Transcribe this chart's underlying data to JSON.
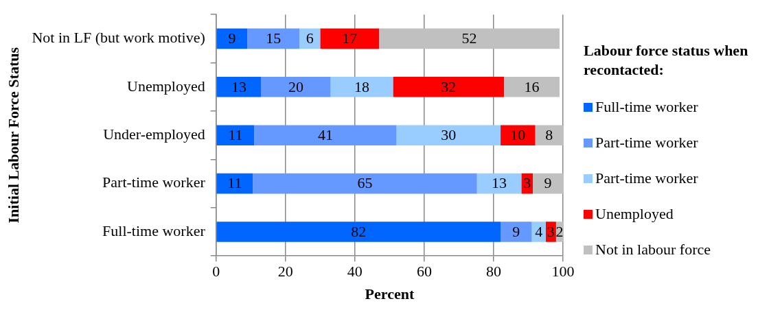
{
  "chart_data": {
    "type": "bar",
    "orientation": "horizontal",
    "stacked": true,
    "xlabel": "Percent",
    "ylabel": "Initial Labour Force Status",
    "legend_title": "Labour force status when recontacted:",
    "legend": "right",
    "grid": "x",
    "categories": [
      "Not in LF (but work motive)",
      "Unemployed",
      "Under-employed",
      "Part-time worker",
      "Full-time worker"
    ],
    "xlim": [
      0,
      100
    ],
    "xticks": [
      0,
      20,
      40,
      60,
      80,
      100
    ],
    "series": [
      {
        "name": "Full-time worker",
        "color": "#0066ff",
        "values": [
          9,
          13,
          11,
          10.6,
          82
        ],
        "value_labels": [
          "9",
          "13",
          "11",
          "11",
          "82"
        ]
      },
      {
        "name": "Part-time worker",
        "color": "#6699ff",
        "values": [
          15,
          20,
          41,
          64.6,
          9
        ],
        "value_labels": [
          "15",
          "20",
          "41",
          "65",
          "9"
        ]
      },
      {
        "name": "Part-time worker",
        "color": "#99ccff",
        "values": [
          6,
          18,
          30,
          12.8,
          4
        ],
        "value_labels": [
          "6",
          "18",
          "30",
          "13",
          "4"
        ]
      },
      {
        "name": "Unemployed",
        "color": "#ff0000",
        "values": [
          17,
          32,
          10,
          3.3,
          3
        ],
        "value_labels": [
          "17",
          "32",
          "10",
          "3",
          "3"
        ]
      },
      {
        "name": "Not in labour force",
        "color": "#c0c0c0",
        "values": [
          52,
          16,
          8,
          8.7,
          2
        ],
        "value_labels": [
          "52",
          "16",
          "8",
          "9",
          "2"
        ]
      }
    ]
  }
}
